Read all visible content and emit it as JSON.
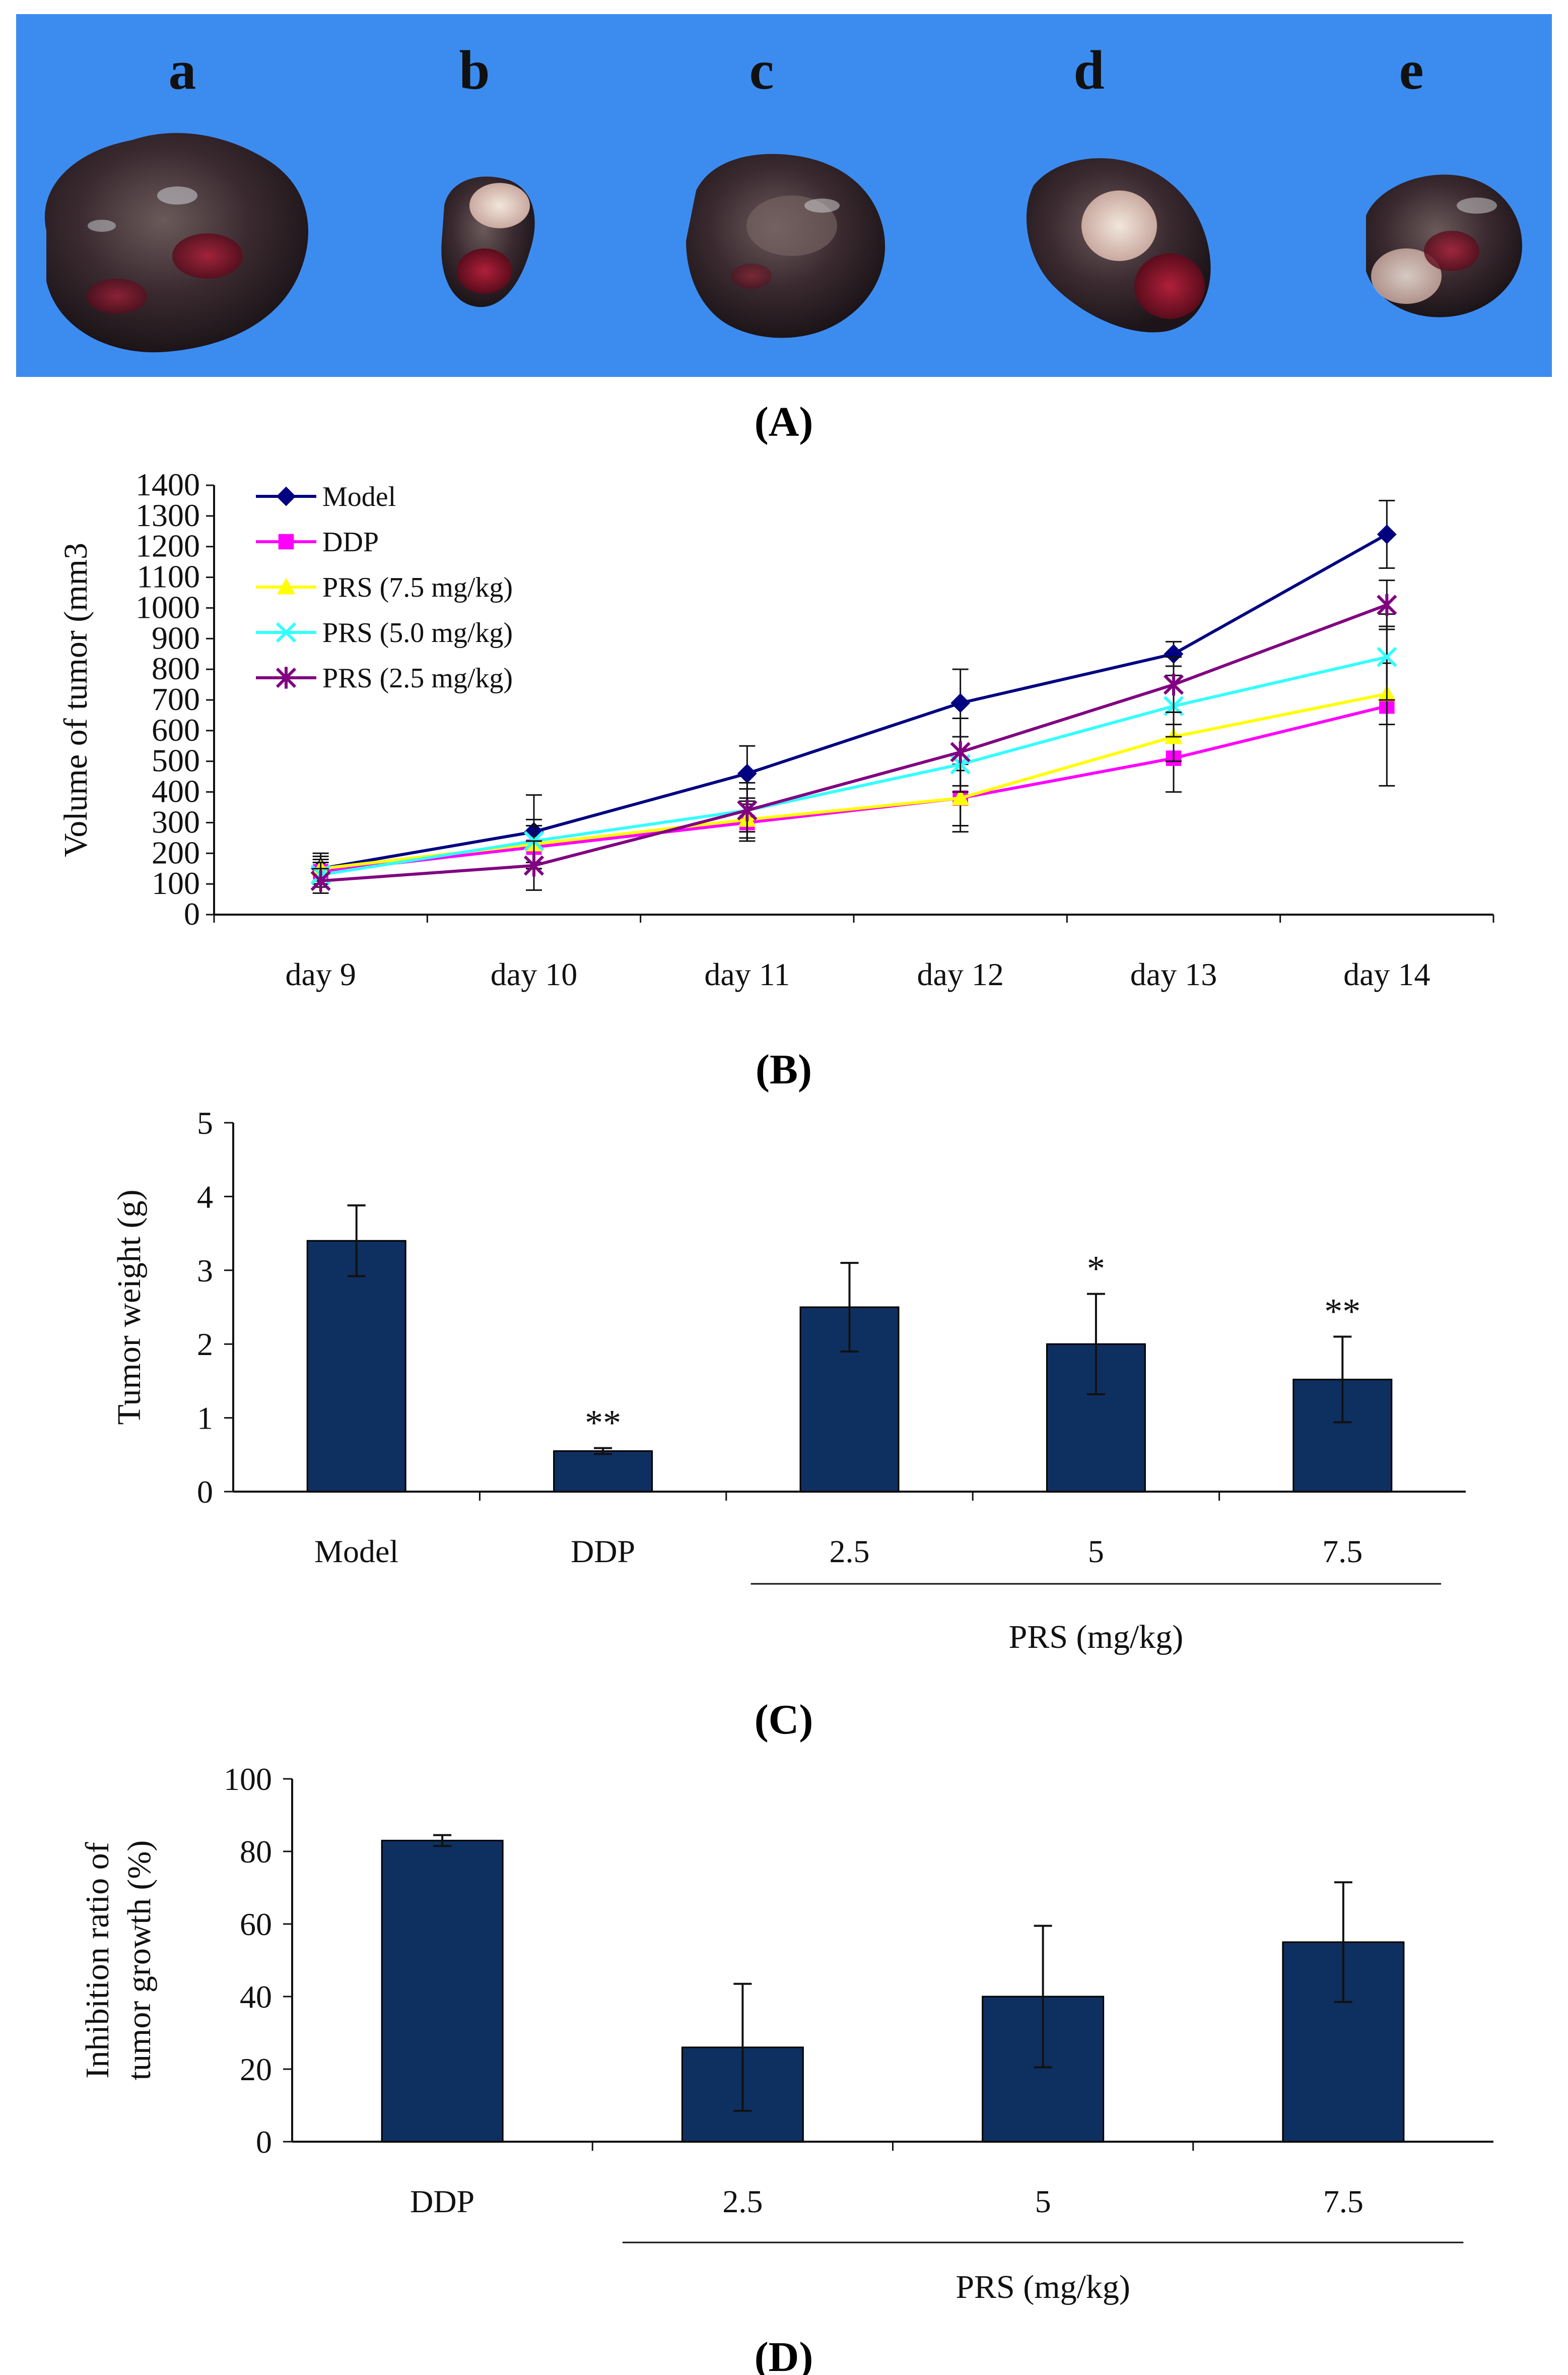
{
  "figure": {
    "background": "#ffffff",
    "photo_background": "#3c8cf0",
    "bar_color": "#0e3060",
    "line_color": "#111111"
  },
  "panel_a": {
    "caption": "(A)",
    "labels": [
      "a",
      "b",
      "c",
      "d",
      "e"
    ]
  },
  "captions": {
    "b": "(B)",
    "c": "(C)",
    "d": "(D)"
  },
  "chart_data": [
    {
      "panel": "B",
      "type": "line",
      "title": "",
      "xlabel": "",
      "ylabel": "Volume of tumor (mm3",
      "categories": [
        "day 9",
        "day 10",
        "day 11",
        "day 12",
        "day 13",
        "day 14"
      ],
      "ylim": [
        0,
        1400
      ],
      "yticks": [
        0,
        100,
        200,
        300,
        400,
        500,
        600,
        700,
        800,
        900,
        1000,
        1100,
        1200,
        1300,
        1400
      ],
      "legend_position": "top-left",
      "series": [
        {
          "name": "Model",
          "color": "#000080",
          "marker": "diamond",
          "values": [
            150,
            270,
            460,
            690,
            850,
            1240
          ],
          "errors": [
            50,
            120,
            90,
            110,
            40,
            110
          ]
        },
        {
          "name": "DDP",
          "color": "#ff00ff",
          "marker": "square",
          "values": [
            140,
            220,
            300,
            380,
            510,
            680
          ],
          "errors": [
            40,
            70,
            60,
            110,
            110,
            260
          ]
        },
        {
          "name": "PRS (7.5 mg/kg)",
          "color": "#ffff00",
          "marker": "triangle",
          "values": [
            150,
            230,
            310,
            380,
            580,
            720
          ],
          "errors": [
            40,
            60,
            70,
            90,
            80,
            100
          ]
        },
        {
          "name": "PRS (5.0 mg/kg)",
          "color": "#33ffff",
          "marker": "x",
          "values": [
            130,
            240,
            340,
            490,
            680,
            840
          ],
          "errors": [
            40,
            70,
            70,
            90,
            100,
            140
          ]
        },
        {
          "name": "PRS (2.5 mg/kg)",
          "color": "#800080",
          "marker": "star",
          "values": [
            110,
            160,
            340,
            530,
            750,
            1010
          ],
          "errors": [
            40,
            80,
            90,
            110,
            90,
            80
          ]
        }
      ]
    },
    {
      "panel": "C",
      "type": "bar",
      "title": "",
      "xlabel": "PRS (mg/kg)",
      "ylabel": "Tumor weight (g)",
      "categories": [
        "Model",
        "DDP",
        "2.5",
        "5",
        "7.5"
      ],
      "values": [
        3.4,
        0.55,
        2.5,
        2.0,
        1.52
      ],
      "errors": [
        0.48,
        0.04,
        0.6,
        0.68,
        0.58
      ],
      "annotations": [
        "",
        "**",
        "",
        "*",
        "**"
      ],
      "ylim": [
        0,
        5
      ],
      "yticks": [
        0,
        1,
        2,
        3,
        4,
        5
      ]
    },
    {
      "panel": "D",
      "type": "bar",
      "title": "",
      "xlabel": "PRS (mg/kg)",
      "ylabel_lines": [
        "Inhibition ratio of",
        "tumor growth (%)"
      ],
      "categories": [
        "DDP",
        "2.5",
        "5",
        "7.5"
      ],
      "values": [
        83,
        26,
        40,
        55
      ],
      "errors": [
        1.5,
        17.5,
        19.5,
        16.5
      ],
      "ylim": [
        0,
        100
      ],
      "yticks": [
        0,
        20,
        40,
        60,
        80,
        100
      ]
    }
  ]
}
